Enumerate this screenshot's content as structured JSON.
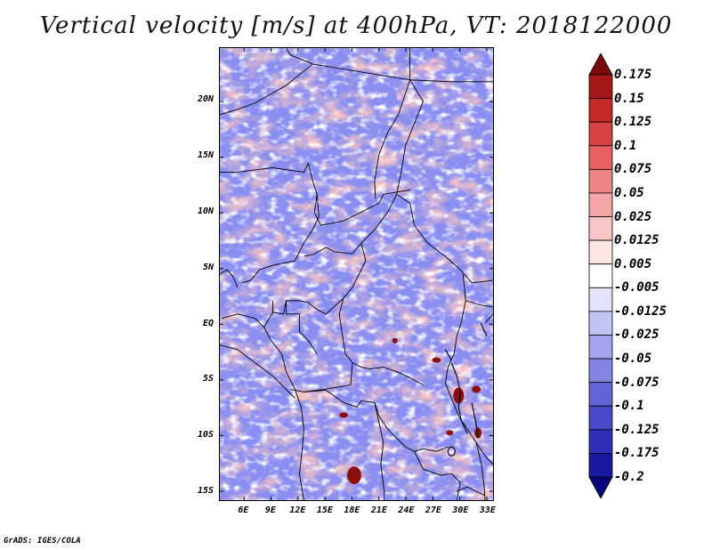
{
  "title": "Vertical velocity [m/s] at 400hPa, VT: 2018122000",
  "credit": "GrADS: IGES/COLA",
  "map": {
    "lat_labels": [
      "20N",
      "15N",
      "10N",
      "5N",
      "EQ",
      "5S",
      "10S",
      "15S"
    ],
    "lat_values": [
      20,
      15,
      10,
      5,
      0,
      -5,
      -10,
      -15
    ],
    "lon_labels": [
      "6E",
      "9E",
      "12E",
      "15E",
      "18E",
      "21E",
      "24E",
      "27E",
      "30E",
      "33E"
    ],
    "lon_values": [
      6,
      9,
      12,
      15,
      18,
      21,
      24,
      27,
      30,
      33
    ],
    "lat_range": [
      -15.8,
      24.8
    ],
    "lon_range": [
      3.3,
      33.7
    ]
  },
  "colorbar": {
    "labels": [
      "0.175",
      "0.15",
      "0.125",
      "0.1",
      "0.075",
      "0.05",
      "0.025",
      "0.0125",
      "0.005",
      "-0.005",
      "-0.0125",
      "-0.025",
      "-0.05",
      "-0.075",
      "-0.1",
      "-0.125",
      "-0.175",
      "-0.2"
    ],
    "colors": [
      "#7a0a0a",
      "#a51818",
      "#c22a2a",
      "#d84242",
      "#e86060",
      "#ef8484",
      "#f4a5a5",
      "#f8c6c6",
      "#fce6e6",
      "#ffffff",
      "#e2e2fa",
      "#c4c4f4",
      "#a4a4ec",
      "#8484e2",
      "#6464d6",
      "#4848c8",
      "#2e2eb6",
      "#1818a0",
      "#06067a"
    ]
  },
  "colors": {
    "border": "#000000",
    "blue_field": "#8a8ef0",
    "red_field": "#ee9696"
  }
}
